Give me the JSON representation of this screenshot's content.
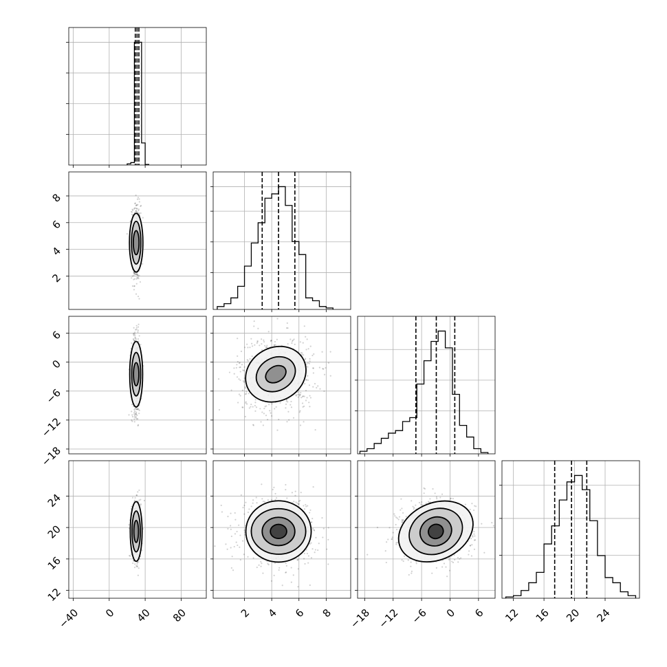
{
  "figure": {
    "type": "corner_plot",
    "grid": true,
    "grid_color": "#b0b0b0",
    "mark_color": "#000000"
  },
  "chart_data": [
    {
      "type": "histogram",
      "panel": [
        0,
        0
      ],
      "parameter_index": 0,
      "xlim": [
        -45,
        108
      ],
      "bins": [
        20,
        24,
        28,
        32,
        36,
        40,
        44
      ],
      "counts": [
        0.01,
        0.02,
        1.0,
        1.0,
        0.18,
        0.005
      ],
      "quantiles": [
        29,
        31,
        33
      ],
      "xticks": [
        -40,
        0,
        40,
        80
      ],
      "xtick_labels": [
        "−40",
        "0",
        "40",
        "80"
      ],
      "yticks_relative": [
        0.25,
        0.5,
        0.75,
        1.0
      ]
    },
    {
      "type": "scatter_density",
      "panel": [
        1,
        0
      ],
      "xlim": [
        -45,
        108
      ],
      "ylim": [
        -0.5,
        9.8
      ],
      "center": [
        30,
        4.5
      ],
      "spread": [
        2.5,
        1.4
      ],
      "contours": [
        {
          "rx": 3.2,
          "ry": 0.9
        },
        {
          "rx": 5.2,
          "ry": 1.6
        },
        {
          "rx": 7.5,
          "ry": 2.2
        }
      ],
      "yticks": [
        2,
        4,
        6,
        8
      ],
      "ytick_labels": [
        "2",
        "4",
        "6",
        "8"
      ]
    },
    {
      "type": "histogram",
      "panel": [
        1,
        1
      ],
      "parameter_index": 1,
      "xlim": [
        -0.3,
        9.8
      ],
      "bins": [
        0.0,
        0.5,
        1.0,
        1.5,
        2.0,
        2.5,
        3.0,
        3.5,
        4.0,
        4.5,
        5.0,
        5.5,
        6.0,
        6.5,
        7.0,
        7.5,
        8.0,
        8.5
      ],
      "counts": [
        0.02,
        0.04,
        0.08,
        0.16,
        0.3,
        0.46,
        0.6,
        0.77,
        0.8,
        0.85,
        0.72,
        0.47,
        0.38,
        0.08,
        0.06,
        0.02,
        0.01
      ],
      "quantiles": [
        3.3,
        4.5,
        5.7
      ],
      "xticks": [
        2,
        4,
        6,
        8
      ],
      "xtick_labels": [
        "2",
        "4",
        "6",
        "8"
      ],
      "yticks_relative": [
        0.3,
        0.55,
        0.8,
        1.0
      ]
    },
    {
      "type": "scatter_density",
      "panel": [
        2,
        0
      ],
      "xlim": [
        -45,
        108
      ],
      "ylim": [
        -19,
        9.5
      ],
      "center": [
        30,
        -2.5
      ],
      "spread": [
        2.5,
        4.0
      ],
      "contours": [
        {
          "rx": 3.0,
          "ry": 2.4
        },
        {
          "rx": 5.0,
          "ry": 4.5
        },
        {
          "rx": 7.2,
          "ry": 6.8
        }
      ],
      "yticks": [
        -18,
        -12,
        -6,
        0,
        6
      ],
      "ytick_labels": [
        "−18",
        "−12",
        "−6",
        "0",
        "6"
      ]
    },
    {
      "type": "scatter_density",
      "panel": [
        2,
        1
      ],
      "xlim": [
        -0.3,
        9.8
      ],
      "ylim": [
        -19,
        9.5
      ],
      "center": [
        4.3,
        -2.5
      ],
      "spread": [
        1.4,
        4.0
      ],
      "contours": [
        {
          "rx": 0.8,
          "ry": 1.6,
          "angle": -30
        },
        {
          "rx": 1.5,
          "ry": 3.4,
          "angle": -30
        },
        {
          "rx": 2.3,
          "ry": 5.5,
          "angle": -30
        }
      ],
      "yticks": [
        -18,
        -12,
        -6,
        0,
        6
      ],
      "xticks": [
        2,
        4,
        6,
        8
      ]
    },
    {
      "type": "histogram",
      "panel": [
        2,
        2
      ],
      "parameter_index": 2,
      "xlim": [
        -19.5,
        9.5
      ],
      "bins": [
        -19,
        -17.5,
        -16,
        -14.5,
        -13,
        -11.5,
        -10,
        -8.5,
        -7,
        -5.5,
        -4,
        -2.5,
        -1,
        0.5,
        2,
        3.5,
        5,
        6.5,
        8
      ],
      "counts": [
        0.02,
        0.04,
        0.08,
        0.12,
        0.16,
        0.18,
        0.25,
        0.28,
        0.54,
        0.72,
        0.87,
        0.95,
        0.82,
        0.46,
        0.22,
        0.13,
        0.04,
        0.01
      ],
      "quantiles": [
        -7.2,
        -2.9,
        1.0
      ],
      "xticks": [
        -18,
        -12,
        -6,
        0,
        6
      ],
      "yticks_relative": [
        0.35,
        0.6,
        0.85
      ]
    },
    {
      "type": "scatter_density",
      "panel": [
        3,
        0
      ],
      "xlim": [
        -45,
        108
      ],
      "ylim": [
        11,
        28.5
      ],
      "center": [
        30,
        19.5
      ],
      "spread": [
        2.5,
        1.8
      ],
      "contours": [
        {
          "rx": 2.6,
          "ry": 1.4
        },
        {
          "rx": 4.6,
          "ry": 2.6
        },
        {
          "rx": 6.6,
          "ry": 3.8
        }
      ],
      "yticks": [
        12,
        16,
        20,
        24
      ],
      "ytick_labels": [
        "12",
        "16",
        "20",
        "24"
      ],
      "xticks": [
        -40,
        0,
        40,
        80
      ],
      "xtick_labels": [
        "−40",
        "0",
        "40",
        "80"
      ]
    },
    {
      "type": "scatter_density",
      "panel": [
        3,
        1
      ],
      "xlim": [
        -0.3,
        9.8
      ],
      "ylim": [
        11,
        28.5
      ],
      "center": [
        4.5,
        19.5
      ],
      "spread": [
        1.4,
        2.0
      ],
      "contours": [
        {
          "rx": 0.6,
          "ry": 0.9
        },
        {
          "rx": 1.2,
          "ry": 1.8
        },
        {
          "rx": 2.0,
          "ry": 2.9
        },
        {
          "rx": 2.4,
          "ry": 3.9
        }
      ],
      "yticks": [
        12,
        16,
        20,
        24
      ],
      "xticks": [
        2,
        4,
        6,
        8
      ],
      "xtick_labels": [
        "2",
        "4",
        "6",
        "8"
      ]
    },
    {
      "type": "scatter_density",
      "panel": [
        3,
        2
      ],
      "xlim": [
        -19.5,
        9.5
      ],
      "ylim": [
        11,
        28.5
      ],
      "center": [
        -3.0,
        19.5
      ],
      "spread": [
        4.0,
        2.0
      ],
      "contours": [
        {
          "rx": 1.6,
          "ry": 0.9,
          "angle": -25
        },
        {
          "rx": 3.4,
          "ry": 1.8,
          "angle": -25
        },
        {
          "rx": 5.8,
          "ry": 2.8,
          "angle": -25
        },
        {
          "rx": 8.2,
          "ry": 3.6,
          "angle": -25
        }
      ],
      "yticks": [
        12,
        16,
        20,
        24
      ],
      "xticks": [
        -18,
        -12,
        -6,
        0,
        6
      ],
      "xtick_labels": [
        "−18",
        "−12",
        "−6",
        "0",
        "6"
      ]
    },
    {
      "type": "histogram",
      "panel": [
        3,
        3
      ],
      "parameter_index": 3,
      "xlim": [
        10.5,
        28.5
      ],
      "bins": [
        11,
        12,
        13,
        14,
        15,
        16,
        17,
        18,
        19,
        20,
        21,
        22,
        23,
        24,
        25,
        26,
        27,
        28
      ],
      "counts": [
        0.01,
        0.02,
        0.06,
        0.12,
        0.2,
        0.42,
        0.56,
        0.76,
        0.9,
        0.95,
        0.84,
        0.6,
        0.33,
        0.16,
        0.12,
        0.05,
        0.02
      ],
      "quantiles": [
        17.4,
        19.6,
        21.6
      ],
      "xticks": [
        12,
        16,
        20,
        24
      ],
      "xtick_labels": [
        "12",
        "16",
        "20",
        "24"
      ],
      "yticks_relative": [
        0.35,
        0.65,
        0.92
      ]
    }
  ]
}
